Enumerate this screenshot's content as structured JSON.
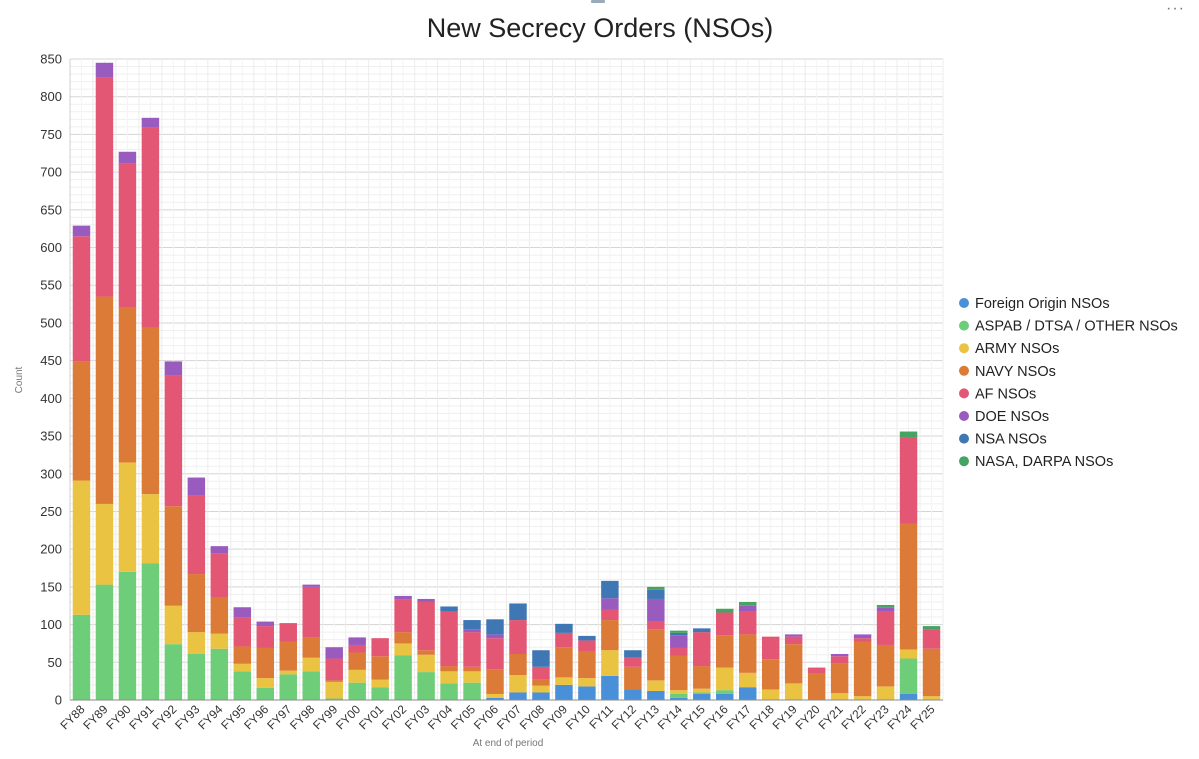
{
  "menu_icon": "more-horizontal-icon",
  "chart_data": {
    "type": "bar",
    "stacked": true,
    "title": "New Secrecy Orders (NSOs)",
    "xlabel": "At end of period",
    "ylabel": "Count",
    "ylim": [
      0,
      850
    ],
    "yticks": [
      0,
      50,
      100,
      150,
      200,
      250,
      300,
      350,
      400,
      450,
      500,
      550,
      600,
      650,
      700,
      750,
      800,
      850
    ],
    "grid": true,
    "legend_position": "right",
    "categories": [
      "FY88",
      "FY89",
      "FY90",
      "FY91",
      "FY92",
      "FY93",
      "FY94",
      "FY95",
      "FY96",
      "FY97",
      "FY98",
      "FY99",
      "FY00",
      "FY01",
      "FY02",
      "FY03",
      "FY04",
      "FY05",
      "FY06",
      "FY07",
      "FY08",
      "FY09",
      "FY10",
      "FY11",
      "FY12",
      "FY13",
      "FY14",
      "FY15",
      "FY16",
      "FY17",
      "FY18",
      "FY19",
      "FY20",
      "FY21",
      "FY22",
      "FY23",
      "FY24",
      "FY25"
    ],
    "series": [
      {
        "name": "Foreign Origin NSOs",
        "color": "#4a90d9",
        "values": [
          0,
          0,
          0,
          0,
          0,
          0,
          0,
          0,
          0,
          0,
          0,
          0,
          0,
          0,
          0,
          0,
          0,
          0,
          3,
          10,
          10,
          20,
          18,
          32,
          14,
          12,
          3,
          8,
          8,
          17,
          0,
          0,
          0,
          0,
          0,
          0,
          8,
          0
        ]
      },
      {
        "name": "ASPAB / DTSA / OTHER NSOs",
        "color": "#6dcd78",
        "values": [
          113,
          153,
          170,
          181,
          74,
          61,
          68,
          38,
          16,
          34,
          38,
          2,
          23,
          17,
          59,
          37,
          22,
          23,
          0,
          0,
          0,
          0,
          0,
          0,
          0,
          0,
          5,
          2,
          5,
          0,
          0,
          0,
          0,
          0,
          0,
          0,
          47,
          0
        ]
      },
      {
        "name": "ARMY NSOs",
        "color": "#ebc343",
        "values": [
          178,
          107,
          145,
          92,
          51,
          29,
          20,
          10,
          13,
          5,
          18,
          22,
          17,
          10,
          16,
          23,
          16,
          15,
          5,
          23,
          9,
          10,
          11,
          34,
          0,
          14,
          5,
          5,
          30,
          19,
          14,
          22,
          0,
          9,
          5,
          18,
          12,
          5
        ]
      },
      {
        "name": "NAVY NSOs",
        "color": "#dc7a38",
        "values": [
          158,
          275,
          205,
          221,
          132,
          77,
          48,
          23,
          40,
          38,
          27,
          2,
          23,
          31,
          15,
          6,
          7,
          6,
          33,
          28,
          8,
          40,
          36,
          40,
          30,
          68,
          46,
          30,
          43,
          51,
          40,
          52,
          35,
          40,
          72,
          55,
          167,
          63
        ]
      },
      {
        "name": "AF NSOs",
        "color": "#e35775",
        "values": [
          166,
          290,
          192,
          265,
          173,
          104,
          58,
          38,
          29,
          25,
          67,
          29,
          10,
          24,
          43,
          64,
          72,
          46,
          41,
          45,
          17,
          19,
          14,
          14,
          12,
          10,
          10,
          45,
          30,
          31,
          30,
          10,
          8,
          9,
          5,
          45,
          114,
          25
        ]
      },
      {
        "name": "DOE NSOs",
        "color": "#9a5bbf",
        "values": [
          14,
          20,
          15,
          13,
          19,
          24,
          10,
          14,
          6,
          0,
          3,
          15,
          10,
          0,
          5,
          4,
          0,
          4,
          5,
          0,
          0,
          0,
          0,
          15,
          0,
          30,
          17,
          0,
          0,
          7,
          0,
          3,
          0,
          3,
          5,
          5,
          0,
          0
        ]
      },
      {
        "name": "NSA NSOs",
        "color": "#3f76b4",
        "values": [
          0,
          0,
          0,
          0,
          0,
          0,
          0,
          0,
          0,
          0,
          0,
          0,
          0,
          0,
          0,
          0,
          7,
          12,
          20,
          22,
          22,
          12,
          6,
          23,
          10,
          12,
          3,
          5,
          0,
          0,
          0,
          0,
          0,
          0,
          0,
          0,
          0,
          0
        ]
      },
      {
        "name": "NASA, DARPA NSOs",
        "color": "#47a361",
        "values": [
          0,
          0,
          0,
          0,
          0,
          0,
          0,
          0,
          0,
          0,
          0,
          0,
          0,
          0,
          0,
          0,
          0,
          0,
          0,
          0,
          0,
          0,
          0,
          0,
          0,
          4,
          3,
          0,
          5,
          5,
          0,
          0,
          0,
          0,
          0,
          3,
          8,
          5
        ]
      }
    ]
  }
}
